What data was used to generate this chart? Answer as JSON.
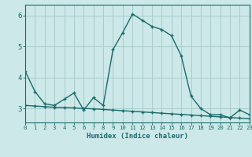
{
  "title": "",
  "xlabel": "Humidex (Indice chaleur)",
  "ylabel": "",
  "bg_color": "#cce8e8",
  "grid_color": "#aacccc",
  "line_color": "#1a6b6b",
  "x_values": [
    0,
    1,
    2,
    3,
    4,
    5,
    6,
    7,
    8,
    9,
    10,
    11,
    12,
    13,
    14,
    15,
    16,
    17,
    18,
    19,
    20,
    21,
    22,
    23
  ],
  "y_values1": [
    4.2,
    3.55,
    3.15,
    3.1,
    3.3,
    3.5,
    2.95,
    3.35,
    3.1,
    4.9,
    5.45,
    6.05,
    5.85,
    5.65,
    5.55,
    5.35,
    4.7,
    3.4,
    3.0,
    2.8,
    2.8,
    2.7,
    2.95,
    2.8
  ],
  "y_values2": [
    3.1,
    3.08,
    3.06,
    3.04,
    3.03,
    3.02,
    3.0,
    2.99,
    2.97,
    2.95,
    2.93,
    2.91,
    2.89,
    2.87,
    2.85,
    2.83,
    2.81,
    2.79,
    2.77,
    2.75,
    2.73,
    2.71,
    2.69,
    2.67
  ],
  "xlim": [
    0,
    23
  ],
  "ylim": [
    2.55,
    6.35
  ],
  "yticks": [
    3,
    4,
    5,
    6
  ]
}
